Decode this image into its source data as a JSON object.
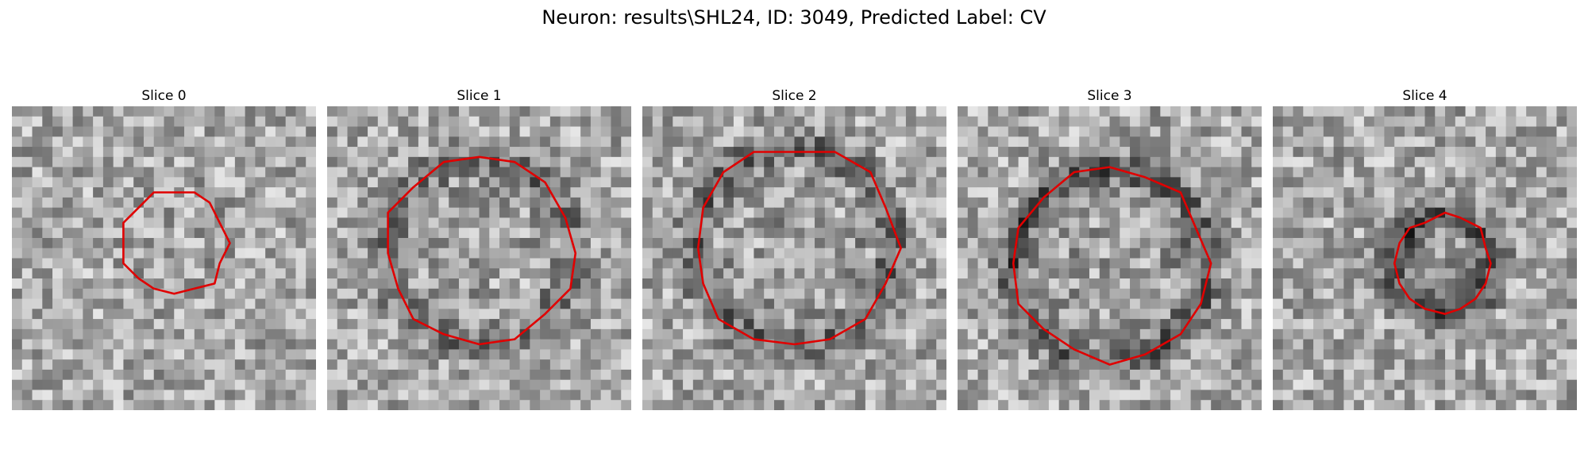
{
  "figure": {
    "title": "Neuron: results\\SHL24, ID: 3049, Predicted Label: CV",
    "outline_color": "#e00000"
  },
  "slices": [
    {
      "label": "Slice 0",
      "seed": 11,
      "contour_radius": 0.35,
      "dark_ring": 0.1,
      "center": [
        0.53,
        0.45
      ]
    },
    {
      "label": "Slice 1",
      "seed": 23,
      "contour_radius": 0.62,
      "dark_ring": 0.55,
      "center": [
        0.5,
        0.48
      ]
    },
    {
      "label": "Slice 2",
      "seed": 37,
      "contour_radius": 0.66,
      "dark_ring": 0.7,
      "center": [
        0.5,
        0.46
      ]
    },
    {
      "label": "Slice 3",
      "seed": 41,
      "contour_radius": 0.64,
      "dark_ring": 0.85,
      "center": [
        0.5,
        0.52
      ]
    },
    {
      "label": "Slice 4",
      "seed": 59,
      "contour_radius": 0.32,
      "dark_ring": 0.9,
      "center": [
        0.56,
        0.52
      ]
    }
  ]
}
